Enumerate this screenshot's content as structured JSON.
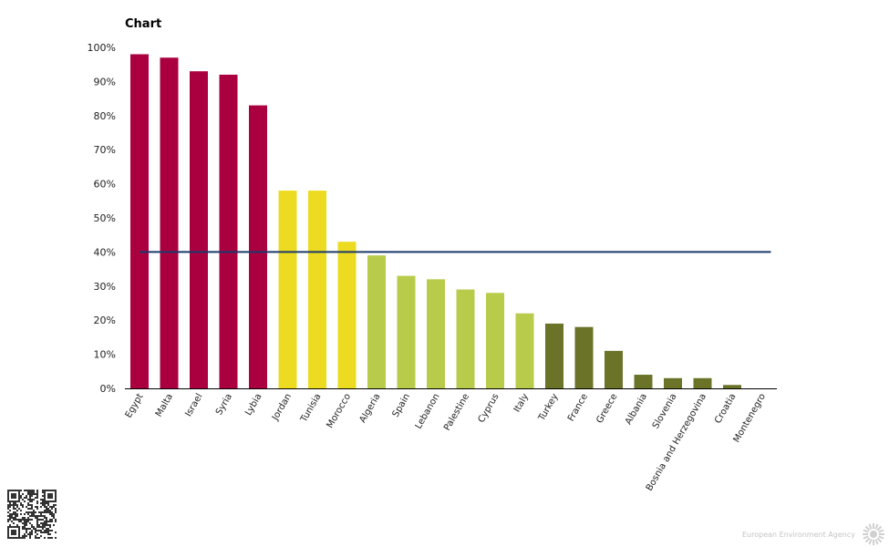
{
  "chart_title": "Chart",
  "footer": {
    "agency": "European Environment Agency"
  },
  "colors": {
    "very_high": "#ab003f",
    "high": "#ecdb20",
    "medium": "#b9cb4a",
    "low": "#6b7328",
    "threshold": "#1b3a6b",
    "axis": "#000000"
  },
  "chart_data": {
    "type": "bar",
    "title": "Chart",
    "xlabel": "",
    "ylabel": "",
    "ylim": [
      0,
      100
    ],
    "y_ticks": [
      "0%",
      "10%",
      "20%",
      "30%",
      "40%",
      "50%",
      "60%",
      "70%",
      "80%",
      "90%",
      "100%"
    ],
    "categories": [
      "Egypt",
      "Malta",
      "Israel",
      "Syria",
      "Lybia",
      "Jordan",
      "Tunisia",
      "Morocco",
      "Algeria",
      "Spain",
      "Lebanon",
      "Palestine",
      "Cyprus",
      "Italy",
      "Turkey",
      "France",
      "Greece",
      "Albania",
      "Slovenia",
      "Bosnia and Herzegovina",
      "Croatia",
      "Montenegro"
    ],
    "values": [
      98,
      97,
      93,
      92,
      83,
      58,
      58,
      43,
      39,
      33,
      32,
      29,
      28,
      22,
      19,
      18,
      11,
      4,
      3,
      3,
      1,
      0
    ],
    "color_groups": [
      "very_high",
      "very_high",
      "very_high",
      "very_high",
      "very_high",
      "high",
      "high",
      "high",
      "medium",
      "medium",
      "medium",
      "medium",
      "medium",
      "medium",
      "low",
      "low",
      "low",
      "low",
      "low",
      "low",
      "low",
      "low"
    ],
    "threshold": 40,
    "grid": false,
    "legend": "none"
  }
}
